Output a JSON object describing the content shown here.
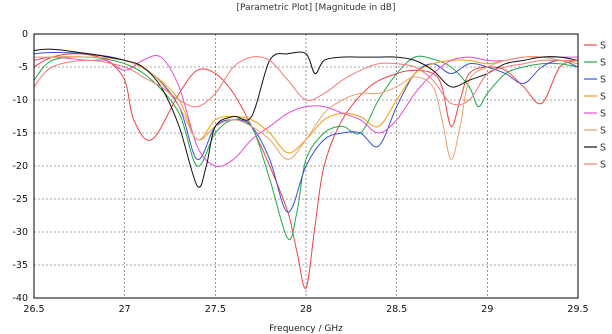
{
  "chart_data": {
    "type": "line",
    "title": "[Parametric Plot] [Magnitude in dB]",
    "xlabel": "Frequency / GHz",
    "ylabel": "",
    "xlim": [
      26.5,
      29.5
    ],
    "ylim": [
      -40,
      0
    ],
    "x_ticks": [
      "26.5",
      "27",
      "27.5",
      "28",
      "28.5",
      "29",
      "29.5"
    ],
    "y_ticks": [
      "0",
      "-5",
      "-10",
      "-15",
      "-20",
      "-25",
      "-30",
      "-35",
      "-40"
    ],
    "grid": true,
    "legend_position": "right",
    "series": [
      {
        "name": "S",
        "color": "#ef4444",
        "x": [
          26.5,
          26.6,
          26.75,
          26.9,
          27.0,
          27.05,
          27.15,
          27.3,
          27.4,
          27.5,
          27.6,
          27.7,
          27.8,
          27.9,
          27.95,
          28.0,
          28.05,
          28.1,
          28.2,
          28.35,
          28.5,
          28.6,
          28.7,
          28.75,
          28.8,
          28.85,
          28.9,
          29.0,
          29.1,
          29.2,
          29.3,
          29.4,
          29.5
        ],
        "y": [
          -5,
          -3.5,
          -3,
          -4,
          -7,
          -13,
          -16,
          -9,
          -5.5,
          -6,
          -9,
          -14,
          -20,
          -27,
          -33,
          -38.5,
          -29,
          -20,
          -13,
          -8,
          -6,
          -5.5,
          -6,
          -8,
          -14,
          -10,
          -6,
          -5,
          -5.5,
          -8,
          -10.5,
          -5,
          -4
        ]
      },
      {
        "name": "S",
        "color": "#22a84a",
        "x": [
          26.5,
          26.6,
          26.8,
          27.0,
          27.15,
          27.3,
          27.4,
          27.5,
          27.6,
          27.7,
          27.8,
          27.9,
          27.95,
          28.0,
          28.1,
          28.2,
          28.3,
          28.4,
          28.5,
          28.6,
          28.7,
          28.8,
          28.9,
          28.95,
          29.0,
          29.1,
          29.2,
          29.3,
          29.4,
          29.5
        ],
        "y": [
          -7,
          -4,
          -3.5,
          -4.5,
          -7,
          -12,
          -20,
          -15,
          -13,
          -14,
          -22,
          -31,
          -27,
          -19,
          -15,
          -14,
          -15,
          -10,
          -6,
          -3.5,
          -3.8,
          -5,
          -8,
          -11,
          -9,
          -6,
          -5,
          -4.5,
          -4.5,
          -5
        ]
      },
      {
        "name": "S",
        "color": "#3b4fd8",
        "x": [
          26.5,
          26.6,
          26.8,
          27.0,
          27.15,
          27.3,
          27.4,
          27.5,
          27.6,
          27.7,
          27.8,
          27.9,
          28.0,
          28.1,
          28.2,
          28.3,
          28.4,
          28.5,
          28.6,
          28.7,
          28.8,
          28.9,
          29.0,
          29.1,
          29.2,
          29.3,
          29.4,
          29.5
        ],
        "y": [
          -3,
          -2.8,
          -3,
          -4,
          -6,
          -11,
          -19,
          -14,
          -13,
          -14,
          -19,
          -27,
          -20,
          -16,
          -15,
          -15,
          -17,
          -11,
          -6,
          -4.5,
          -6,
          -4.5,
          -5,
          -6,
          -7.5,
          -5,
          -4,
          -5
        ]
      },
      {
        "name": "S",
        "color": "#f59e0b",
        "x": [
          26.5,
          26.6,
          26.8,
          27.0,
          27.15,
          27.3,
          27.4,
          27.5,
          27.6,
          27.7,
          27.8,
          27.9,
          28.0,
          28.1,
          28.2,
          28.3,
          28.4,
          28.5,
          28.6,
          28.7,
          28.8,
          28.9,
          29.0,
          29.1,
          29.2,
          29.3,
          29.4,
          29.5
        ],
        "y": [
          -4,
          -3.5,
          -3.5,
          -4,
          -6,
          -10,
          -16,
          -13,
          -12.5,
          -13,
          -15,
          -18,
          -16,
          -13,
          -12,
          -12.5,
          -14,
          -10,
          -6,
          -4.5,
          -4,
          -4,
          -4.5,
          -4,
          -3.5,
          -3.5,
          -4,
          -4.5
        ]
      },
      {
        "name": "S",
        "color": "#e64ad6",
        "x": [
          26.5,
          26.6,
          26.8,
          26.9,
          27.0,
          27.1,
          27.2,
          27.3,
          27.4,
          27.5,
          27.6,
          27.7,
          27.8,
          27.9,
          28.0,
          28.1,
          28.2,
          28.3,
          28.4,
          28.5,
          28.6,
          28.7,
          28.8,
          28.9,
          29.0,
          29.1,
          29.2,
          29.3,
          29.4,
          29.5
        ],
        "y": [
          -4,
          -3.5,
          -4,
          -4,
          -5.5,
          -4,
          -3.5,
          -8,
          -17,
          -20,
          -19,
          -16,
          -14,
          -12,
          -11,
          -11,
          -12,
          -13,
          -15,
          -13,
          -9,
          -6,
          -4,
          -3.5,
          -4,
          -4,
          -3.5,
          -3.5,
          -3.5,
          -3.5
        ]
      },
      {
        "name": "S",
        "color": "#e8a070",
        "x": [
          26.5,
          26.6,
          26.8,
          27.0,
          27.15,
          27.3,
          27.4,
          27.5,
          27.6,
          27.7,
          27.8,
          27.9,
          28.0,
          28.1,
          28.2,
          28.3,
          28.4,
          28.5,
          28.6,
          28.7,
          28.75,
          28.8,
          28.85,
          28.9,
          29.0,
          29.1,
          29.2,
          29.3,
          29.4,
          29.5
        ],
        "y": [
          -3.5,
          -3.5,
          -3.5,
          -4,
          -6,
          -11,
          -16,
          -14,
          -13,
          -14,
          -16,
          -19,
          -16,
          -12,
          -10,
          -9,
          -9,
          -8,
          -6.5,
          -8,
          -13,
          -19,
          -14,
          -7,
          -5,
          -4,
          -3.5,
          -3.5,
          -4,
          -4.5
        ]
      },
      {
        "name": "S",
        "color": "#111111",
        "x": [
          26.5,
          26.6,
          26.8,
          27.0,
          27.1,
          27.2,
          27.3,
          27.4,
          27.45,
          27.5,
          27.6,
          27.7,
          27.8,
          27.9,
          28.0,
          28.05,
          28.1,
          28.2,
          28.3,
          28.4,
          28.5,
          28.6,
          28.7,
          28.8,
          28.9,
          29.0,
          29.1,
          29.2,
          29.3,
          29.4,
          29.5
        ],
        "y": [
          -2.5,
          -2.3,
          -3,
          -4,
          -5,
          -8,
          -14,
          -23,
          -20,
          -14,
          -12.5,
          -12.5,
          -4,
          -3,
          -3,
          -6,
          -4,
          -3.5,
          -3.5,
          -3.5,
          -3.5,
          -4,
          -5.5,
          -8,
          -7,
          -6,
          -4.5,
          -4,
          -3.5,
          -3.5,
          -4
        ]
      },
      {
        "name": "S",
        "color": "#f27a7a",
        "x": [
          26.5,
          26.6,
          26.8,
          27.0,
          27.1,
          27.2,
          27.3,
          27.4,
          27.5,
          27.6,
          27.7,
          27.8,
          27.9,
          28.0,
          28.1,
          28.2,
          28.3,
          28.4,
          28.5,
          28.6,
          28.7,
          28.8,
          28.9,
          29.0,
          29.1,
          29.2,
          29.3,
          29.4,
          29.5
        ],
        "y": [
          -8,
          -5,
          -4,
          -5,
          -6.5,
          -8,
          -10,
          -11,
          -9,
          -5,
          -3.5,
          -4,
          -7,
          -10,
          -9,
          -7,
          -5.5,
          -4.5,
          -4.5,
          -5,
          -7,
          -10.5,
          -10,
          -6,
          -5,
          -4.5,
          -4,
          -4,
          -4
        ]
      }
    ]
  }
}
